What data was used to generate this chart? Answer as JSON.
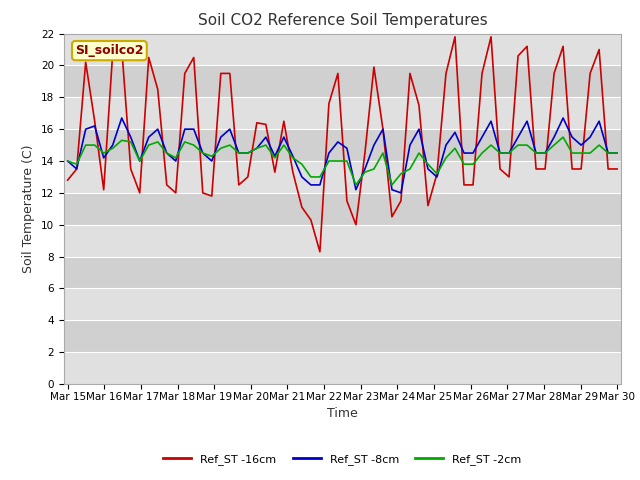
{
  "title": "Soil CO2 Reference Soil Temperatures",
  "xlabel": "Time",
  "ylabel": "Soil Temperature (C)",
  "ylim": [
    0,
    22
  ],
  "yticks": [
    0,
    2,
    4,
    6,
    8,
    10,
    12,
    14,
    16,
    18,
    20,
    22
  ],
  "background_color": "#ffffff",
  "plot_bg_color": "#e8e8e8",
  "grid_color": "#ffffff",
  "annotation_label": "SI_soilco2",
  "annotation_bg": "#ffffcc",
  "annotation_border": "#ccaa00",
  "series": [
    {
      "label": "Ref_ST -16cm",
      "color": "#cc0000",
      "linewidth": 1.2
    },
    {
      "label": "Ref_ST -8cm",
      "color": "#0000cc",
      "linewidth": 1.2
    },
    {
      "label": "Ref_ST -2cm",
      "color": "#00aa00",
      "linewidth": 1.2
    }
  ],
  "xtick_labels": [
    "Mar 15",
    "Mar 16",
    "Mar 17",
    "Mar 18",
    "Mar 19",
    "Mar 20",
    "Mar 21",
    "Mar 22",
    "Mar 23",
    "Mar 24",
    "Mar 25",
    "Mar 26",
    "Mar 27",
    "Mar 28",
    "Mar 29",
    "Mar 30"
  ],
  "red_data": [
    12.8,
    13.5,
    20.2,
    16.5,
    12.2,
    20.8,
    21.1,
    13.5,
    12.0,
    20.5,
    18.5,
    12.5,
    12.0,
    19.5,
    20.5,
    12.0,
    11.8,
    19.5,
    19.5,
    12.5,
    13.0,
    16.4,
    16.3,
    13.3,
    16.5,
    13.3,
    11.1,
    10.3,
    8.3,
    17.6,
    19.5,
    11.5,
    10.0,
    14.5,
    19.9,
    16.0,
    10.5,
    11.5,
    19.5,
    17.5,
    11.2,
    13.2,
    19.5,
    21.8,
    12.5,
    12.5,
    19.5,
    21.8,
    13.5,
    13.0,
    20.6,
    21.2,
    13.5,
    13.5,
    19.5,
    21.2,
    13.5,
    13.5,
    19.5,
    21.0,
    13.5,
    13.5
  ],
  "blue_data": [
    14.0,
    13.5,
    16.0,
    16.2,
    14.2,
    15.0,
    16.7,
    15.5,
    14.0,
    15.5,
    16.0,
    14.5,
    14.0,
    16.0,
    16.0,
    14.5,
    14.0,
    15.5,
    16.0,
    14.5,
    14.5,
    14.8,
    15.5,
    14.3,
    15.5,
    14.3,
    13.0,
    12.5,
    12.5,
    14.5,
    15.2,
    14.8,
    12.2,
    13.5,
    15.0,
    16.0,
    12.2,
    12.0,
    15.0,
    16.0,
    13.5,
    13.0,
    15.0,
    15.8,
    14.5,
    14.5,
    15.5,
    16.5,
    14.5,
    14.5,
    15.5,
    16.5,
    14.5,
    14.5,
    15.5,
    16.7,
    15.5,
    15.0,
    15.5,
    16.5,
    14.5,
    14.5
  ],
  "green_data": [
    14.0,
    13.8,
    15.0,
    15.0,
    14.5,
    14.8,
    15.3,
    15.2,
    14.0,
    15.0,
    15.2,
    14.5,
    14.2,
    15.2,
    15.0,
    14.5,
    14.3,
    14.8,
    15.0,
    14.5,
    14.5,
    14.8,
    15.0,
    14.2,
    15.0,
    14.2,
    13.8,
    13.0,
    13.0,
    14.0,
    14.0,
    14.0,
    12.5,
    13.3,
    13.5,
    14.5,
    12.5,
    13.2,
    13.5,
    14.5,
    13.8,
    13.2,
    14.2,
    14.8,
    13.8,
    13.8,
    14.5,
    15.0,
    14.5,
    14.5,
    15.0,
    15.0,
    14.5,
    14.5,
    15.0,
    15.5,
    14.5,
    14.5,
    14.5,
    15.0,
    14.5,
    14.5
  ],
  "band_colors": [
    "#e0e0e0",
    "#d0d0d0"
  ],
  "title_fontsize": 11,
  "axis_label_fontsize": 9,
  "tick_fontsize": 7.5,
  "legend_fontsize": 8
}
